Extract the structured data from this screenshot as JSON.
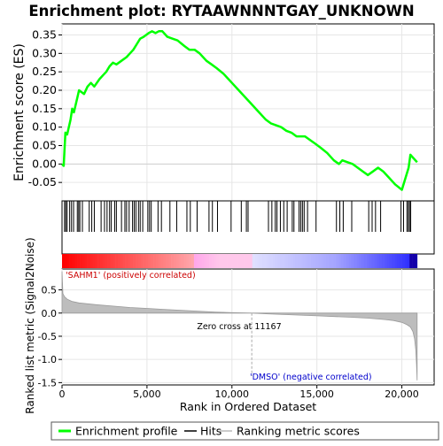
{
  "chart_data": {
    "type": "line",
    "title": "Enrichment plot: RYTAAWNNNTGAY_UNKNOWN",
    "top_panel": {
      "ylabel": "Enrichment score (ES)",
      "ylim": [
        -0.1,
        0.38
      ],
      "yticks": [
        -0.05,
        0.0,
        0.05,
        0.1,
        0.15,
        0.2,
        0.25,
        0.3,
        0.35
      ],
      "ytick_labels": [
        "-0.05",
        "0.00",
        "0.05",
        "0.10",
        "0.15",
        "0.20",
        "0.25",
        "0.30",
        "0.35"
      ],
      "xlim": [
        0,
        21900
      ],
      "grid": true,
      "series": [
        {
          "name": "Enrichment profile",
          "color": "#00ff00",
          "x": [
            0,
            100,
            200,
            300,
            500,
            600,
            700,
            900,
            1000,
            1300,
            1500,
            1700,
            1900,
            2200,
            2400,
            2600,
            2800,
            3000,
            3200,
            3500,
            3800,
            4000,
            4200,
            4400,
            4600,
            4800,
            5100,
            5300,
            5500,
            5700,
            5900,
            6200,
            6500,
            6800,
            7200,
            7500,
            7800,
            8100,
            8500,
            8800,
            9100,
            9500,
            10000,
            10500,
            11000,
            11500,
            12000,
            12300,
            12600,
            12900,
            13200,
            13500,
            13800,
            14000,
            14300,
            14600,
            14900,
            15200,
            15600,
            16000,
            16300,
            16500,
            16800,
            17100,
            17400,
            17700,
            18000,
            18300,
            18600,
            18900,
            19200,
            19600,
            20000,
            20200,
            20400,
            20500,
            20700,
            20900
          ],
          "y": [
            0.0,
            -0.005,
            0.085,
            0.08,
            0.12,
            0.15,
            0.14,
            0.18,
            0.2,
            0.19,
            0.21,
            0.22,
            0.21,
            0.23,
            0.24,
            0.25,
            0.265,
            0.275,
            0.27,
            0.28,
            0.29,
            0.3,
            0.31,
            0.325,
            0.34,
            0.345,
            0.355,
            0.36,
            0.355,
            0.36,
            0.36,
            0.345,
            0.34,
            0.335,
            0.32,
            0.31,
            0.31,
            0.3,
            0.28,
            0.27,
            0.26,
            0.245,
            0.22,
            0.195,
            0.17,
            0.145,
            0.12,
            0.11,
            0.105,
            0.1,
            0.09,
            0.085,
            0.075,
            0.075,
            0.075,
            0.065,
            0.055,
            0.045,
            0.03,
            0.01,
            0.0,
            0.01,
            0.005,
            0.0,
            -0.01,
            -0.02,
            -0.03,
            -0.02,
            -0.01,
            -0.02,
            -0.035,
            -0.055,
            -0.07,
            -0.04,
            -0.01,
            0.025,
            0.015,
            0.005
          ]
        }
      ]
    },
    "hits": [
      150,
      220,
      300,
      450,
      560,
      680,
      900,
      980,
      1050,
      1200,
      1600,
      1750,
      1900,
      2300,
      2500,
      2650,
      2800,
      2900,
      3100,
      3200,
      3500,
      3700,
      3800,
      3950,
      4150,
      4250,
      4350,
      4500,
      4600,
      4750,
      5050,
      5150,
      5250,
      5650,
      5850,
      6350,
      6750,
      7350,
      7550,
      7950,
      8650,
      8850,
      9150,
      9950,
      10550,
      10850,
      10950,
      12150,
      12350,
      12550,
      12650,
      12850,
      13050,
      13250,
      13550,
      13650,
      13950,
      14050,
      14150,
      14250,
      14450,
      14950,
      16150,
      16350,
      16550,
      17050,
      18050,
      18250,
      18450,
      18750,
      19950,
      20100,
      20300,
      20380,
      20450,
      20520
    ],
    "heatmap": {
      "positive_label": "'SAHM1' (positively correlated)",
      "negative_label": "'DMSO' (negative correlated)"
    },
    "bottom_panel": {
      "ylabel": "Ranked list metric (Signal2Noise)",
      "xlabel": "Rank in Ordered Dataset",
      "ylim": [
        -1.55,
        0.95
      ],
      "yticks": [
        -1.5,
        -1.0,
        -0.5,
        0.0,
        0.5
      ],
      "ytick_labels": [
        "-1.5",
        "-1.0",
        "-0.5",
        "0.0",
        "0.5"
      ],
      "xticks": [
        0,
        5000,
        10000,
        15000,
        20000
      ],
      "xtick_labels": [
        "0",
        "5,000",
        "10,000",
        "15,000",
        "20,000"
      ],
      "xlim": [
        0,
        21900
      ],
      "zero_cross_value": 11167,
      "zero_cross_label": "Zero cross at 11167",
      "metric_curve": {
        "x": [
          0,
          50,
          150,
          300,
          600,
          1000,
          2000,
          3000,
          4000,
          5000,
          6000,
          7000,
          8000,
          9000,
          10000,
          11167,
          12000,
          13000,
          14000,
          15000,
          16000,
          17000,
          18000,
          19000,
          19500,
          20000,
          20300,
          20500,
          20650,
          20750,
          20820,
          20860,
          20900
        ],
        "y": [
          0.9,
          0.42,
          0.35,
          0.3,
          0.25,
          0.22,
          0.18,
          0.15,
          0.12,
          0.1,
          0.08,
          0.06,
          0.04,
          0.02,
          0.01,
          0.0,
          -0.015,
          -0.03,
          -0.045,
          -0.06,
          -0.075,
          -0.09,
          -0.11,
          -0.14,
          -0.16,
          -0.2,
          -0.25,
          -0.3,
          -0.4,
          -0.55,
          -0.8,
          -1.1,
          -1.45
        ]
      }
    },
    "legend": {
      "position": "bottom",
      "items": [
        {
          "label": "Enrichment profile",
          "color": "#00ff00"
        },
        {
          "label": "Hits",
          "color": "#000000"
        },
        {
          "label": "Ranking metric scores",
          "color": "#bbbbbb"
        }
      ]
    }
  }
}
